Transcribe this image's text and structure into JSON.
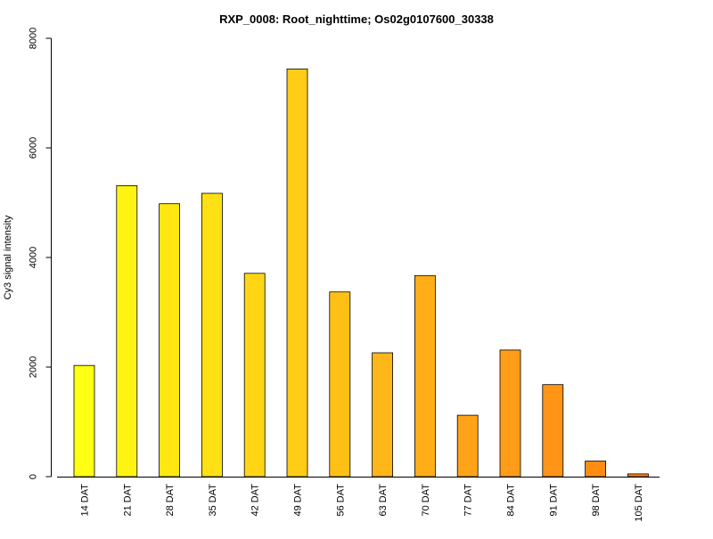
{
  "chart_data": {
    "type": "bar",
    "title": "RXP_0008: Root_nighttime; Os02g0107600_30338",
    "xlabel": "",
    "ylabel": "Cy3 signal intensity",
    "ylim": [
      0,
      8000
    ],
    "yticks": [
      0,
      2000,
      4000,
      6000,
      8000
    ],
    "grid": false,
    "legend": "none",
    "categories": [
      "14 DAT",
      "21 DAT",
      "28 DAT",
      "35 DAT",
      "42 DAT",
      "49 DAT",
      "56 DAT",
      "63 DAT",
      "70 DAT",
      "77 DAT",
      "84 DAT",
      "91 DAT",
      "98 DAT",
      "105 DAT"
    ],
    "values": [
      2030,
      5310,
      4980,
      5170,
      3710,
      7440,
      3370,
      2260,
      3670,
      1120,
      2310,
      1680,
      285,
      50
    ],
    "colors": [
      "#FFFF14",
      "#FFF312",
      "#FFE812",
      "#FFE014",
      "#FFD516",
      "#FFCC16",
      "#FFC016",
      "#FFB618",
      "#FFAE18",
      "#FFA318",
      "#FF9C18",
      "#FF9416",
      "#FF8C12",
      "#FF8210"
    ]
  }
}
